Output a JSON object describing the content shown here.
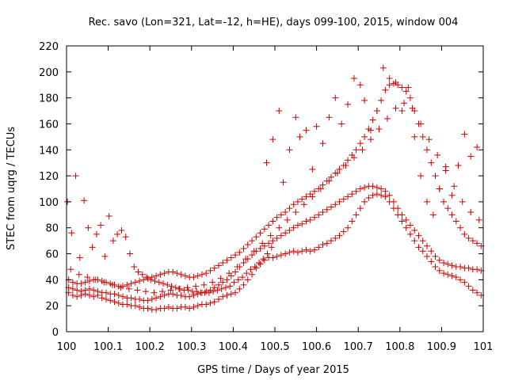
{
  "chart_data": {
    "type": "scatter",
    "title": "Rec. savo (Lon=321, Lat=-12, h=HE), days 099-100, 2015, window 004",
    "xlabel": "GPS time / Days of year 2015",
    "ylabel": "STEC from uqrg / TECUs",
    "xlim": [
      100,
      101
    ],
    "ylim": [
      0,
      220
    ],
    "xticks": [
      "100",
      "100.1",
      "100.2",
      "100.3",
      "100.4",
      "100.5",
      "100.6",
      "100.7",
      "100.8",
      "100.9",
      "101"
    ],
    "yticks": [
      "0",
      "20",
      "40",
      "60",
      "80",
      "100",
      "120",
      "140",
      "160",
      "180",
      "200",
      "220"
    ],
    "grid": false,
    "legend": "none",
    "marker": "plus",
    "color": "#cc0000",
    "series": [
      {
        "x": [
          100.005,
          100.015,
          100.025,
          100.035,
          100.045,
          100.055,
          100.065,
          100.075,
          100.085,
          100.095,
          100.105,
          100.115,
          100.125,
          100.135,
          100.145,
          100.155,
          100.165,
          100.175,
          100.185,
          100.195,
          100.205,
          100.215,
          100.225,
          100.235,
          100.245,
          100.255,
          100.265,
          100.275,
          100.285,
          100.295,
          100.305,
          100.315,
          100.325,
          100.335,
          100.345,
          100.355,
          100.365,
          100.375,
          100.385,
          100.395,
          100.405,
          100.415,
          100.425,
          100.435,
          100.445,
          100.455,
          100.465,
          100.475,
          100.485,
          100.495,
          100.505,
          100.515,
          100.525,
          100.535,
          100.545,
          100.555,
          100.565,
          100.575,
          100.585,
          100.595,
          100.605,
          100.615,
          100.625,
          100.635,
          100.645,
          100.655,
          100.665,
          100.675,
          100.685,
          100.695,
          100.705,
          100.715,
          100.725,
          100.735,
          100.745,
          100.755,
          100.765,
          100.775,
          100.785,
          100.795,
          100.805,
          100.815,
          100.825,
          100.835,
          100.845,
          100.855,
          100.865,
          100.875,
          100.885,
          100.895,
          100.905,
          100.915,
          100.925,
          100.935,
          100.945,
          100.955,
          100.965,
          100.975,
          100.985,
          100.995
        ],
        "y": [
          30,
          28,
          27,
          28,
          29,
          28,
          27,
          28,
          26,
          25,
          24,
          23,
          22,
          21,
          21,
          20,
          20,
          19,
          18,
          18,
          17,
          17,
          18,
          18,
          19,
          18,
          18,
          19,
          19,
          18,
          19,
          20,
          21,
          21,
          22,
          23,
          25,
          27,
          28,
          29,
          30,
          33,
          36,
          40,
          44,
          49,
          52,
          55,
          57,
          57,
          58,
          59,
          60,
          61,
          62,
          61,
          62,
          63,
          62,
          63,
          65,
          67,
          68,
          70,
          72,
          74,
          77,
          80,
          85,
          90,
          95,
          100,
          103,
          105,
          106,
          105,
          104,
          100,
          95,
          90,
          85,
          80,
          75,
          70,
          65,
          62,
          58,
          54,
          50,
          47,
          45,
          44,
          43,
          42,
          40,
          38,
          35,
          32,
          30,
          28
        ]
      },
      {
        "x": [
          100.005,
          100.015,
          100.025,
          100.035,
          100.045,
          100.055,
          100.065,
          100.075,
          100.085,
          100.095,
          100.105,
          100.115,
          100.125,
          100.135,
          100.145,
          100.155,
          100.165,
          100.175,
          100.185,
          100.195,
          100.205,
          100.215,
          100.225,
          100.235,
          100.245,
          100.255,
          100.265,
          100.275,
          100.285,
          100.295,
          100.305,
          100.315,
          100.325,
          100.335,
          100.345,
          100.355,
          100.365,
          100.375,
          100.385,
          100.395,
          100.405,
          100.415,
          100.425,
          100.435,
          100.445,
          100.455,
          100.465,
          100.475,
          100.485,
          100.495,
          100.505,
          100.515,
          100.525,
          100.535,
          100.545,
          100.555,
          100.565,
          100.575,
          100.585,
          100.595,
          100.605,
          100.615,
          100.625,
          100.635,
          100.645,
          100.655,
          100.665,
          100.675,
          100.685,
          100.695,
          100.705,
          100.715,
          100.725,
          100.735,
          100.745,
          100.755,
          100.765,
          100.775,
          100.785,
          100.795,
          100.805,
          100.815,
          100.825,
          100.835,
          100.845,
          100.855,
          100.865,
          100.875,
          100.885,
          100.895,
          100.905,
          100.915,
          100.925,
          100.935,
          100.945,
          100.955,
          100.965,
          100.975,
          100.985,
          100.995
        ],
        "y": [
          34,
          33,
          32,
          31,
          32,
          33,
          32,
          31,
          30,
          30,
          29,
          29,
          28,
          27,
          26,
          26,
          25,
          25,
          24,
          24,
          25,
          26,
          27,
          28,
          29,
          29,
          28,
          28,
          27,
          27,
          28,
          29,
          30,
          31,
          32,
          34,
          36,
          38,
          40,
          43,
          46,
          50,
          53,
          56,
          59,
          62,
          64,
          66,
          68,
          70,
          72,
          74,
          76,
          78,
          80,
          82,
          83,
          85,
          86,
          88,
          90,
          92,
          94,
          96,
          98,
          100,
          102,
          104,
          106,
          108,
          110,
          111,
          112,
          112,
          111,
          110,
          108,
          105,
          100,
          95,
          90,
          86,
          82,
          78,
          74,
          70,
          66,
          62,
          58,
          55,
          53,
          52,
          51,
          50,
          50,
          49,
          49,
          48,
          48,
          47
        ]
      },
      {
        "x": [
          100.005,
          100.015,
          100.025,
          100.035,
          100.045,
          100.055,
          100.065,
          100.075,
          100.085,
          100.095,
          100.105,
          100.115,
          100.125,
          100.135,
          100.145,
          100.155,
          100.165,
          100.175,
          100.185,
          100.195,
          100.205,
          100.215,
          100.225,
          100.235,
          100.245,
          100.255,
          100.265,
          100.275,
          100.285,
          100.295,
          100.305,
          100.315,
          100.325,
          100.335,
          100.345,
          100.355,
          100.365,
          100.375,
          100.385,
          100.395,
          100.405,
          100.415,
          100.425,
          100.435,
          100.445,
          100.455,
          100.465,
          100.475,
          100.485,
          100.495,
          100.505,
          100.515,
          100.525,
          100.535,
          100.545,
          100.555,
          100.565,
          100.575,
          100.585,
          100.595,
          100.605,
          100.615,
          100.625,
          100.635,
          100.645,
          100.655,
          100.665,
          100.675,
          100.685,
          100.695,
          100.705,
          100.715,
          100.725,
          100.735,
          100.745,
          100.755,
          100.765,
          100.775,
          100.785,
          100.795,
          100.805,
          100.815,
          100.825,
          100.835,
          100.845,
          100.855,
          100.865,
          100.875,
          100.885,
          100.895,
          100.905,
          100.915,
          100.925,
          100.935,
          100.945,
          100.955,
          100.965,
          100.975,
          100.985,
          100.995
        ],
        "y": [
          40,
          38,
          37,
          37,
          38,
          39,
          40,
          40,
          39,
          38,
          37,
          36,
          35,
          35,
          36,
          37,
          38,
          39,
          40,
          41,
          42,
          43,
          44,
          45,
          46,
          46,
          45,
          44,
          43,
          42,
          42,
          43,
          44,
          45,
          47,
          49,
          51,
          53,
          55,
          57,
          59,
          61,
          64,
          67,
          70,
          73,
          76,
          79,
          82,
          85,
          88,
          90,
          92,
          95,
          98,
          100,
          102,
          104,
          106,
          108,
          110,
          113,
          116,
          119,
          122,
          125,
          128,
          132,
          136,
          140,
          145,
          150,
          156,
          163,
          170,
          178,
          186,
          190,
          191,
          190,
          188,
          185,
          180,
          170,
          160,
          150,
          140,
          130,
          120,
          110,
          100,
          95,
          90,
          85,
          80,
          75,
          72,
          70,
          68,
          66
        ]
      },
      {
        "x": [
          100.01,
          100.03,
          100.05,
          100.07,
          100.09,
          100.11,
          100.13,
          100.15,
          100.17,
          100.19,
          100.21,
          100.23,
          100.25,
          100.27,
          100.29,
          100.31,
          100.33,
          100.35,
          100.37,
          100.39,
          100.41,
          100.43,
          100.45,
          100.47,
          100.49,
          100.51,
          100.53,
          100.55,
          100.57,
          100.59,
          100.61,
          100.63,
          100.65,
          100.67,
          100.69,
          100.71,
          100.73,
          100.75,
          100.77,
          100.79,
          100.81,
          100.83,
          100.85,
          100.87,
          100.89,
          100.91,
          100.93,
          100.95,
          100.97,
          100.99
        ],
        "y": [
          48,
          44,
          42,
          40,
          38,
          36,
          34,
          33,
          32,
          31,
          30,
          31,
          32,
          33,
          34,
          35,
          36,
          38,
          41,
          45,
          50,
          56,
          62,
          68,
          74,
          80,
          86,
          92,
          98,
          104,
          110,
          116,
          122,
          128,
          134,
          140,
          148,
          156,
          164,
          172,
          176,
          172,
          160,
          148,
          136,
          124,
          112,
          100,
          92,
          86
        ]
      },
      {
        "x": [
          100.002,
          100.012,
          100.022,
          100.032,
          100.042,
          100.052,
          100.062,
          100.072,
          100.082,
          100.092,
          100.102,
          100.112,
          100.122,
          100.132,
          100.142,
          100.152,
          100.162,
          100.172,
          100.182,
          100.192,
          100.202,
          100.212,
          100.222,
          100.232,
          100.242,
          100.252,
          100.262,
          100.272,
          100.282,
          100.292,
          100.302,
          100.312,
          100.322,
          100.332,
          100.342,
          100.352,
          100.362,
          100.372,
          100.382,
          100.392,
          100.402,
          100.412,
          100.422,
          100.432,
          100.442,
          100.452,
          100.462,
          100.472,
          100.482,
          100.492
        ],
        "y": [
          100,
          76,
          120,
          57,
          101,
          80,
          65,
          75,
          82,
          58,
          89,
          70,
          75,
          78,
          73,
          60,
          50,
          46,
          44,
          42,
          40,
          39,
          38,
          37,
          36,
          35,
          34,
          33,
          32,
          32,
          31,
          31,
          30,
          30,
          30,
          31,
          32,
          33,
          34,
          35,
          38,
          40,
          42,
          45,
          48,
          50,
          53,
          56,
          60,
          65
        ]
      },
      {
        "x": [
          100.48,
          100.495,
          100.51,
          100.52,
          100.535,
          100.55,
          100.56,
          100.575,
          100.59,
          100.6,
          100.615,
          100.63,
          100.645,
          100.66,
          100.675,
          100.69,
          100.705,
          100.715,
          100.73,
          100.745,
          100.76,
          100.775,
          100.79,
          100.805,
          100.82,
          100.835,
          100.85,
          100.865,
          100.88,
          100.895,
          100.91,
          100.925,
          100.94,
          100.955,
          100.97,
          100.985
        ],
        "y": [
          130,
          148,
          170,
          115,
          140,
          165,
          150,
          155,
          125,
          158,
          145,
          165,
          180,
          160,
          175,
          195,
          190,
          178,
          155,
          170,
          203,
          195,
          192,
          170,
          188,
          150,
          120,
          100,
          90,
          110,
          127,
          105,
          128,
          152,
          135,
          142
        ]
      }
    ]
  }
}
